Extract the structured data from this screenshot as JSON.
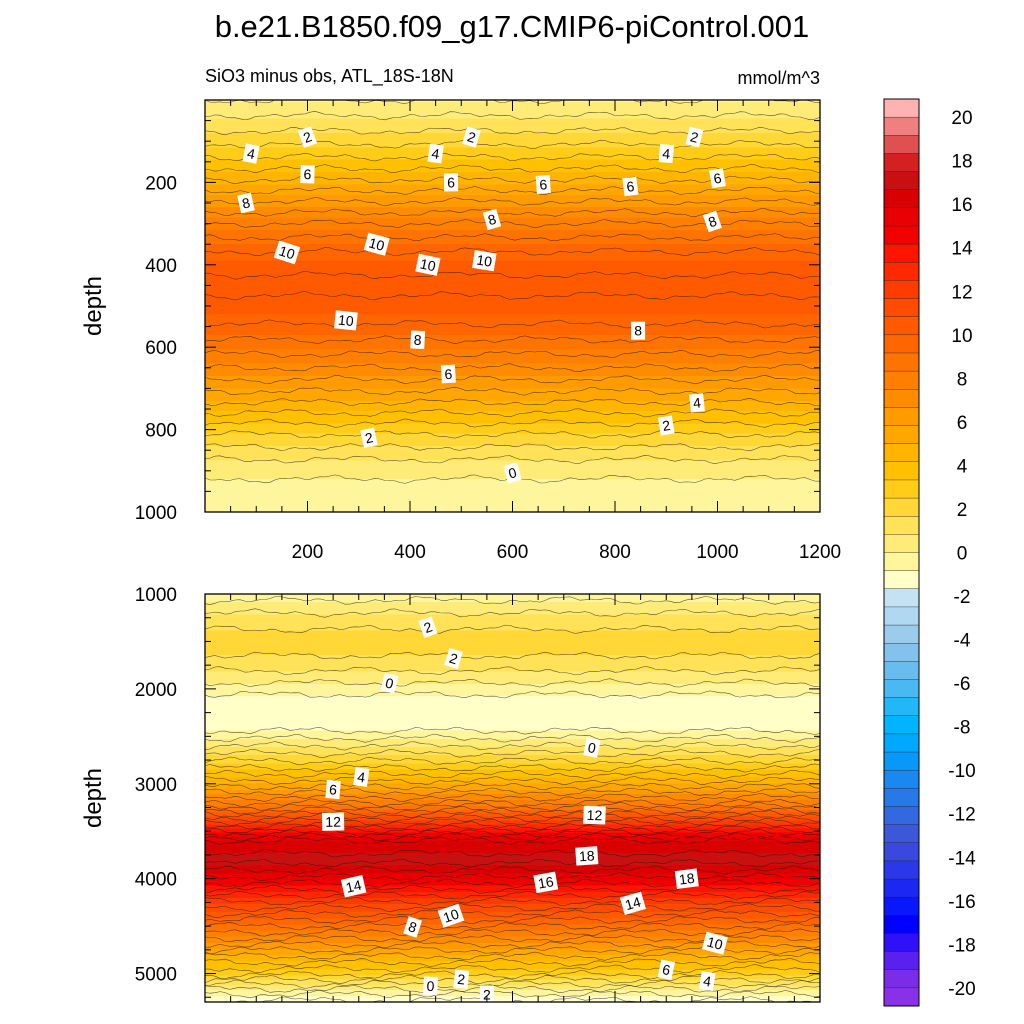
{
  "figure": {
    "title": "b.e21.B1850.f09_g17.CMIP6-piControl.001",
    "subtitle": "SiO3 minus obs, ATL_18S-18N",
    "units": "mmol/m^3"
  },
  "chart_data": [
    {
      "type": "heatmap",
      "panel": "top",
      "ylabel": "depth",
      "x_range": [
        0,
        1200
      ],
      "y_range": [
        0,
        1000
      ],
      "y_inverted": true,
      "x_ticks": [
        200,
        400,
        600,
        800,
        1000,
        1200
      ],
      "y_ticks": [
        200,
        400,
        600,
        800,
        1000
      ],
      "profile": {
        "depth": [
          0,
          20,
          50,
          100,
          150,
          200,
          250,
          300,
          350,
          400,
          450,
          500,
          550,
          600,
          650,
          700,
          750,
          800,
          850,
          880,
          900,
          950,
          1000
        ],
        "value": [
          0,
          0.5,
          1.0,
          2.2,
          3.5,
          5.0,
          6.5,
          8.0,
          9.2,
          10.3,
          10.5,
          10.3,
          9.5,
          8.4,
          7.2,
          5.8,
          4.3,
          2.7,
          1.4,
          0.6,
          0.2,
          -0.3,
          -0.7
        ]
      },
      "contour_labels": [
        {
          "x": 200,
          "depth": 90,
          "text": "2"
        },
        {
          "x": 520,
          "depth": 90,
          "text": "2"
        },
        {
          "x": 955,
          "depth": 90,
          "text": "2"
        },
        {
          "x": 90,
          "depth": 130,
          "text": "4"
        },
        {
          "x": 450,
          "depth": 130,
          "text": "4"
        },
        {
          "x": 900,
          "depth": 130,
          "text": "4"
        },
        {
          "x": 200,
          "depth": 180,
          "text": "6"
        },
        {
          "x": 480,
          "depth": 200,
          "text": "6"
        },
        {
          "x": 660,
          "depth": 205,
          "text": "6"
        },
        {
          "x": 830,
          "depth": 210,
          "text": "6"
        },
        {
          "x": 1000,
          "depth": 190,
          "text": "6"
        },
        {
          "x": 80,
          "depth": 250,
          "text": "8"
        },
        {
          "x": 560,
          "depth": 290,
          "text": "8"
        },
        {
          "x": 990,
          "depth": 295,
          "text": "8"
        },
        {
          "x": 160,
          "depth": 370,
          "text": "10"
        },
        {
          "x": 335,
          "depth": 350,
          "text": "10"
        },
        {
          "x": 435,
          "depth": 400,
          "text": "10"
        },
        {
          "x": 545,
          "depth": 390,
          "text": "10"
        },
        {
          "x": 275,
          "depth": 535,
          "text": "10"
        },
        {
          "x": 415,
          "depth": 582,
          "text": "8"
        },
        {
          "x": 845,
          "depth": 560,
          "text": "8"
        },
        {
          "x": 475,
          "depth": 665,
          "text": "6"
        },
        {
          "x": 960,
          "depth": 735,
          "text": "4"
        },
        {
          "x": 900,
          "depth": 790,
          "text": "2"
        },
        {
          "x": 320,
          "depth": 820,
          "text": "2"
        },
        {
          "x": 600,
          "depth": 905,
          "text": "0"
        }
      ]
    },
    {
      "type": "heatmap",
      "panel": "bottom",
      "ylabel": "depth",
      "x_range": [
        0,
        1200
      ],
      "y_range": [
        1000,
        5300
      ],
      "y_inverted": true,
      "y_ticks": [
        1000,
        2000,
        3000,
        4000,
        5000
      ],
      "profile": {
        "depth": [
          1000,
          1200,
          1500,
          1700,
          1900,
          2000,
          2200,
          2400,
          2600,
          2800,
          3000,
          3200,
          3400,
          3600,
          3800,
          4000,
          4200,
          4400,
          4600,
          4800,
          5000,
          5100,
          5200,
          5300
        ],
        "value": [
          -0.4,
          0.8,
          2.2,
          1.4,
          0.3,
          -0.5,
          -1.5,
          -1.2,
          0.8,
          2.8,
          5.2,
          8.0,
          12.0,
          16.0,
          17.2,
          15.0,
          12.5,
          10.0,
          7.6,
          5.0,
          2.6,
          1.0,
          -0.6,
          -1.8
        ]
      },
      "contour_labels": [
        {
          "x": 435,
          "depth": 1350,
          "text": "2"
        },
        {
          "x": 485,
          "depth": 1680,
          "text": "2"
        },
        {
          "x": 360,
          "depth": 1940,
          "text": "0"
        },
        {
          "x": 755,
          "depth": 2620,
          "text": "0"
        },
        {
          "x": 305,
          "depth": 2930,
          "text": "4"
        },
        {
          "x": 250,
          "depth": 3060,
          "text": "6"
        },
        {
          "x": 760,
          "depth": 3330,
          "text": "12"
        },
        {
          "x": 250,
          "depth": 3400,
          "text": "12"
        },
        {
          "x": 745,
          "depth": 3760,
          "text": "18"
        },
        {
          "x": 940,
          "depth": 4000,
          "text": "18"
        },
        {
          "x": 665,
          "depth": 4040,
          "text": "16"
        },
        {
          "x": 290,
          "depth": 4080,
          "text": "14"
        },
        {
          "x": 835,
          "depth": 4260,
          "text": "14"
        },
        {
          "x": 480,
          "depth": 4390,
          "text": "10"
        },
        {
          "x": 405,
          "depth": 4510,
          "text": "8"
        },
        {
          "x": 995,
          "depth": 4680,
          "text": "10"
        },
        {
          "x": 900,
          "depth": 4960,
          "text": "6"
        },
        {
          "x": 980,
          "depth": 5080,
          "text": "4"
        },
        {
          "x": 500,
          "depth": 5060,
          "text": "2"
        },
        {
          "x": 440,
          "depth": 5130,
          "text": "0"
        },
        {
          "x": 550,
          "depth": 5220,
          "text": "2"
        }
      ]
    }
  ],
  "colorbar": {
    "labels": [
      "20",
      "18",
      "16",
      "14",
      "12",
      "10",
      "8",
      "6",
      "4",
      "2",
      "0",
      "-2",
      "-4",
      "-6",
      "-8",
      "-10",
      "-12",
      "-14",
      "-16",
      "-18",
      "-20"
    ],
    "colors": [
      "#ffb2b2",
      "#f08080",
      "#e05050",
      "#d42020",
      "#c81010",
      "#d80000",
      "#e80000",
      "#f00000",
      "#ff1400",
      "#ff2800",
      "#ff3c00",
      "#ff4c00",
      "#ff5a00",
      "#ff6600",
      "#ff7400",
      "#ff8000",
      "#ff8c00",
      "#ff9a00",
      "#ffa600",
      "#ffb400",
      "#ffc000",
      "#ffcc18",
      "#ffd838",
      "#ffe258",
      "#ffec78",
      "#fff59c",
      "#ffffc8",
      "#c4e2f4",
      "#b0d8f0",
      "#9ccceb",
      "#82c2ec",
      "#68bcee",
      "#4ab8f2",
      "#20b8f8",
      "#00b4ff",
      "#00a8ff",
      "#0898f8",
      "#1a88f0",
      "#2878e8",
      "#3468e0",
      "#3c58d8",
      "#3a48e0",
      "#2a38ea",
      "#1a28f2",
      "#0818fa",
      "#0000ff",
      "#3010f8",
      "#5a20f0",
      "#7a2ce8",
      "#8a30e8"
    ]
  }
}
